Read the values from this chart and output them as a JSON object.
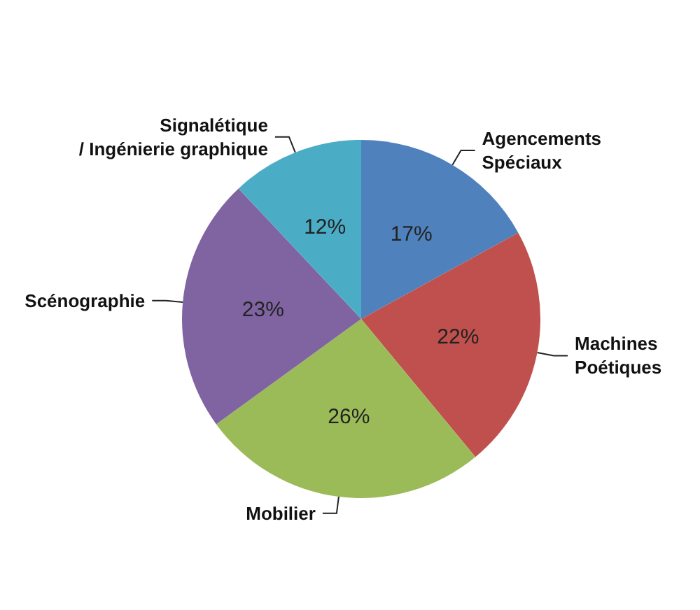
{
  "chart_data": {
    "type": "pie",
    "categories": [
      "Agencements\nSpéciaux",
      "Machines\nPoétiques",
      "Mobilier",
      "Scénographie",
      "Signalétique\n/ Ingénierie graphique"
    ],
    "values": [
      17,
      22,
      26,
      23,
      12
    ],
    "colors": [
      "#4f81bd",
      "#c0504d",
      "#9bbb59",
      "#8064a2",
      "#4bacc6"
    ],
    "value_labels": [
      "17%",
      "22%",
      "26%",
      "23%",
      "12%"
    ],
    "legend": false
  }
}
